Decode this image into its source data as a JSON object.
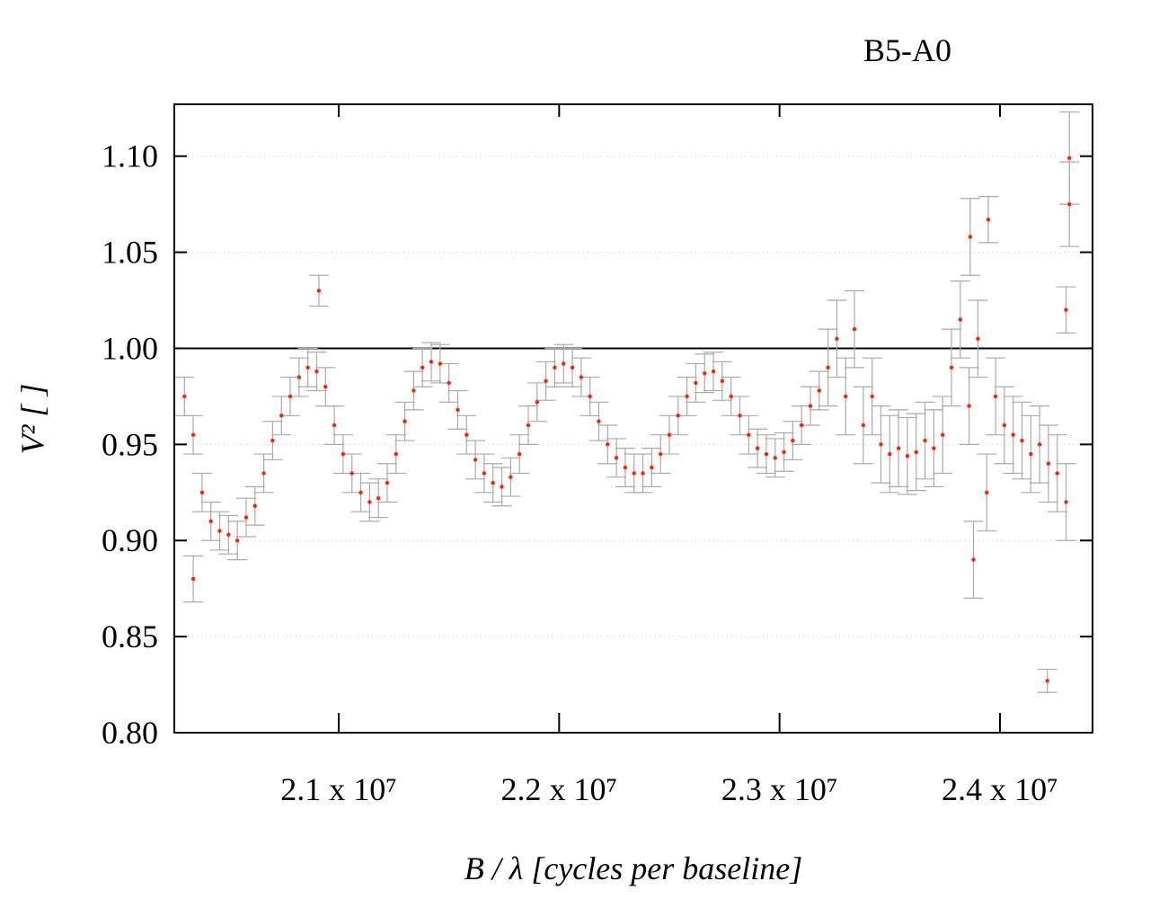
{
  "chart_data": {
    "type": "scatter",
    "title": "B5-A0",
    "xlabel": "B / λ [cycles per baseline]",
    "ylabel": "V² [ ]",
    "xlim": [
      20254000,
      24420000
    ],
    "ylim": [
      0.8,
      1.127
    ],
    "xticks": [
      {
        "value": 21000000,
        "label": "2.1 x 10⁷"
      },
      {
        "value": 22000000,
        "label": "2.2 x 10⁷"
      },
      {
        "value": 23000000,
        "label": "2.3 x 10⁷"
      },
      {
        "value": 24000000,
        "label": "2.4 x 10⁷"
      }
    ],
    "yticks": [
      {
        "value": 0.8,
        "label": "0.80"
      },
      0.85,
      {
        "value": 0.9,
        "label": "0.90"
      },
      0.95,
      {
        "value": 1.0,
        "label": "1.00"
      },
      {
        "value": 1.05,
        "label": "1.05"
      },
      {
        "value": 1.1,
        "label": "1.10"
      }
    ],
    "grid": true,
    "hline": 1.0,
    "color": "#ff2000",
    "error_color": "#aaaaaa",
    "x": [
      20300000,
      20340000,
      20380000,
      20420000,
      20460000,
      20500000,
      20540000,
      20580000,
      20620000,
      20660000,
      20700000,
      20740000,
      20780000,
      20820000,
      20860000,
      20900000,
      20940000,
      20980000,
      21020000,
      21060000,
      21100000,
      21140000,
      21180000,
      21220000,
      21260000,
      21300000,
      21340000,
      21380000,
      21420000,
      21460000,
      21500000,
      21540000,
      21580000,
      21620000,
      21660000,
      21700000,
      21740000,
      21780000,
      21820000,
      21860000,
      21900000,
      21940000,
      21980000,
      22020000,
      22060000,
      22100000,
      22140000,
      22180000,
      22220000,
      22260000,
      22300000,
      22340000,
      22380000,
      22420000,
      22460000,
      22500000,
      22540000,
      22580000,
      22620000,
      22660000,
      22700000,
      22740000,
      22780000,
      22820000,
      22860000,
      22900000,
      22940000,
      22980000,
      23020000,
      23060000,
      23100000,
      23140000,
      23180000,
      23220000,
      23260000,
      23300000,
      23340000,
      23380000,
      23420000,
      23460000,
      23500000,
      23540000,
      23580000,
      23620000,
      23660000,
      23700000,
      23740000,
      23780000,
      23820000,
      23860000,
      23900000,
      23940000,
      23980000,
      24020000,
      24060000,
      24100000,
      24140000,
      24180000,
      24220000,
      24260000,
      24300000,
      20340000,
      20910000,
      24215000,
      24315000,
      24315000,
      23947000,
      23865000,
      24300000,
      23880000
    ],
    "values": [
      0.975,
      0.955,
      0.925,
      0.91,
      0.905,
      0.903,
      0.9,
      0.912,
      0.918,
      0.935,
      0.952,
      0.965,
      0.975,
      0.985,
      0.99,
      0.988,
      0.98,
      0.96,
      0.945,
      0.935,
      0.925,
      0.92,
      0.922,
      0.93,
      0.945,
      0.962,
      0.978,
      0.99,
      0.993,
      0.992,
      0.982,
      0.968,
      0.955,
      0.942,
      0.935,
      0.93,
      0.928,
      0.933,
      0.945,
      0.96,
      0.972,
      0.983,
      0.99,
      0.992,
      0.99,
      0.985,
      0.975,
      0.962,
      0.95,
      0.943,
      0.938,
      0.935,
      0.935,
      0.938,
      0.945,
      0.955,
      0.965,
      0.975,
      0.982,
      0.987,
      0.988,
      0.983,
      0.975,
      0.965,
      0.955,
      0.948,
      0.945,
      0.943,
      0.946,
      0.952,
      0.96,
      0.97,
      0.978,
      0.99,
      1.005,
      0.975,
      1.01,
      0.96,
      0.975,
      0.95,
      0.945,
      0.948,
      0.944,
      0.946,
      0.952,
      0.948,
      0.955,
      0.99,
      1.015,
      0.97,
      1.005,
      0.925,
      0.975,
      0.96,
      0.955,
      0.952,
      0.945,
      0.95,
      0.94,
      0.935,
      0.92,
      0.88,
      1.03,
      0.827,
      1.099,
      1.075,
      1.067,
      1.058,
      1.02,
      0.89
    ],
    "errors": [
      0.01,
      0.01,
      0.01,
      0.01,
      0.01,
      0.01,
      0.01,
      0.01,
      0.01,
      0.01,
      0.01,
      0.01,
      0.01,
      0.01,
      0.01,
      0.01,
      0.01,
      0.01,
      0.01,
      0.01,
      0.01,
      0.01,
      0.01,
      0.01,
      0.01,
      0.01,
      0.01,
      0.01,
      0.01,
      0.01,
      0.01,
      0.01,
      0.01,
      0.01,
      0.01,
      0.01,
      0.01,
      0.01,
      0.01,
      0.01,
      0.01,
      0.01,
      0.01,
      0.01,
      0.01,
      0.01,
      0.01,
      0.01,
      0.01,
      0.01,
      0.01,
      0.01,
      0.01,
      0.01,
      0.01,
      0.01,
      0.01,
      0.01,
      0.01,
      0.01,
      0.01,
      0.01,
      0.01,
      0.01,
      0.01,
      0.01,
      0.01,
      0.01,
      0.01,
      0.01,
      0.01,
      0.01,
      0.01,
      0.02,
      0.02,
      0.02,
      0.02,
      0.02,
      0.02,
      0.02,
      0.02,
      0.02,
      0.02,
      0.02,
      0.02,
      0.02,
      0.02,
      0.02,
      0.02,
      0.02,
      0.02,
      0.02,
      0.02,
      0.02,
      0.02,
      0.02,
      0.02,
      0.02,
      0.02,
      0.02,
      0.02,
      0.012,
      0.008,
      0.006,
      0.024,
      0.022,
      0.012,
      0.02,
      0.012,
      0.02
    ]
  }
}
